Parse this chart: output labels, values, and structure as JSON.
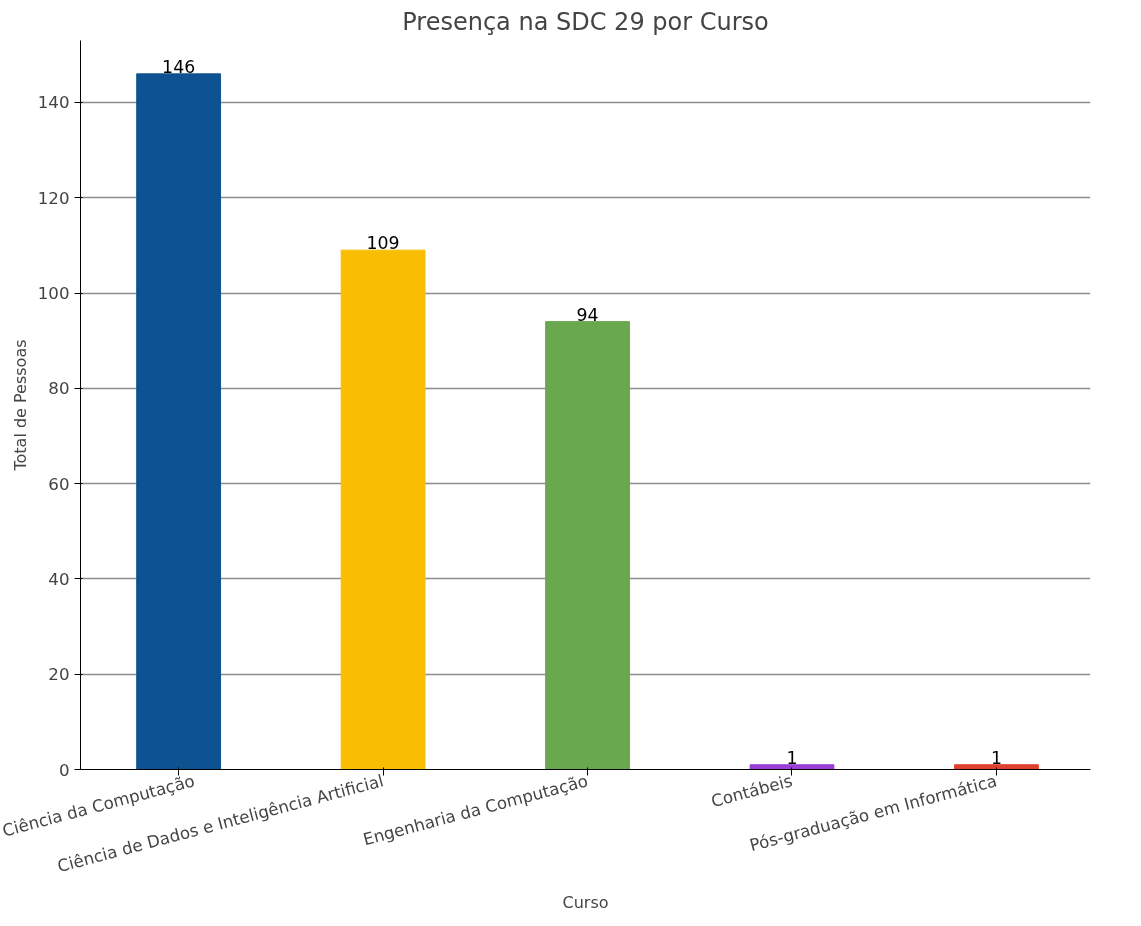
{
  "chart_data": {
    "type": "bar",
    "title": "Presença na SDC 29 por Curso",
    "xlabel": "Curso",
    "ylabel": "Total de Pessoas",
    "categories": [
      "Ciência da Computação",
      "Ciência de Dados e Inteligência Artificial",
      "Engenharia da Computação",
      "Contábeis",
      "Pós-graduação em Informática"
    ],
    "values": [
      146,
      109,
      94,
      1,
      1
    ],
    "colors": [
      "#0d5291",
      "#f9be02",
      "#6aa84f",
      "#9b3fd6",
      "#e0412e"
    ],
    "ylim": [
      0,
      153
    ],
    "yticks": [
      0,
      20,
      40,
      60,
      80,
      100,
      120,
      140
    ],
    "grid": "y",
    "data_labels": true
  }
}
